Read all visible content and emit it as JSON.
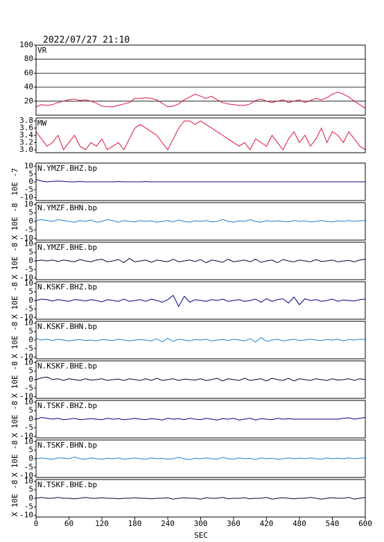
{
  "chart_data": {
    "type": "line",
    "title": "2022/07/27 21:10",
    "xlabel": "SEC",
    "xlim": [
      0,
      600
    ],
    "xticks": [
      0,
      60,
      120,
      180,
      240,
      300,
      360,
      420,
      480,
      540,
      600
    ],
    "x": [
      0,
      10,
      20,
      30,
      40,
      50,
      60,
      70,
      80,
      90,
      100,
      110,
      120,
      130,
      140,
      150,
      160,
      170,
      180,
      190,
      200,
      210,
      220,
      230,
      240,
      250,
      260,
      270,
      280,
      290,
      300,
      310,
      320,
      330,
      340,
      350,
      360,
      370,
      380,
      390,
      400,
      410,
      420,
      430,
      440,
      450,
      460,
      470,
      480,
      490,
      500,
      510,
      520,
      530,
      540,
      550,
      560,
      570,
      580,
      590,
      600
    ],
    "panels": [
      {
        "name": "VR",
        "color": "#dc143c",
        "grid": true,
        "ylim": [
          0,
          100
        ],
        "yticks": [
          20,
          40,
          60,
          80,
          100
        ],
        "values": [
          12,
          15,
          14,
          15,
          18,
          20,
          22,
          23,
          21,
          22,
          20,
          17,
          13,
          12,
          12,
          14,
          16,
          18,
          24,
          24,
          25,
          24,
          22,
          17,
          12,
          13,
          16,
          22,
          26,
          30,
          27,
          24,
          27,
          22,
          18,
          16,
          15,
          14,
          14,
          16,
          21,
          23,
          20,
          18,
          20,
          22,
          18,
          20,
          22,
          18,
          21,
          24,
          22,
          25,
          30,
          33,
          30,
          26,
          20,
          15,
          10
        ]
      },
      {
        "name": "MW",
        "color": "#dc143c",
        "grid": false,
        "ylim": [
          2.92,
          3.88
        ],
        "yticks": [
          {
            "value": 3,
            "label": "3.0"
          },
          3.2,
          3.4,
          3.6,
          3.8
        ],
        "values": [
          3.5,
          3.3,
          3.1,
          3.2,
          3.4,
          3.0,
          3.2,
          3.4,
          3.1,
          3.0,
          3.2,
          3.1,
          3.3,
          3.0,
          3.1,
          3.2,
          3.0,
          3.3,
          3.6,
          3.7,
          3.6,
          3.5,
          3.4,
          3.2,
          3.0,
          3.3,
          3.6,
          3.8,
          3.8,
          3.7,
          3.8,
          3.7,
          3.6,
          3.5,
          3.4,
          3.3,
          3.2,
          3.1,
          3.2,
          3.0,
          3.3,
          3.2,
          3.1,
          3.4,
          3.2,
          3.0,
          3.3,
          3.5,
          3.2,
          3.4,
          3.1,
          3.3,
          3.6,
          3.2,
          3.5,
          3.4,
          3.2,
          3.5,
          3.3,
          3.1,
          3.0
        ]
      },
      {
        "name": "N.YMZF.BHZ.bp",
        "ylabel": "10E -7",
        "color": "#000080",
        "ylim": [
          -12,
          12
        ],
        "yticks": [
          -10,
          -5,
          0,
          5,
          10
        ],
        "values": [
          1.5,
          0.5,
          0,
          0.3,
          0.5,
          0.3,
          0,
          0,
          0.2,
          0,
          0,
          0,
          0,
          0,
          0,
          0.2,
          0,
          0,
          0,
          0,
          0.2,
          0,
          0,
          0,
          0,
          0,
          0,
          0,
          0,
          0,
          0,
          0,
          0,
          0,
          0,
          0,
          0,
          0,
          0,
          0,
          0,
          0,
          0,
          0,
          0,
          0,
          0,
          0,
          0,
          0,
          0,
          0,
          0,
          0,
          0,
          0,
          0,
          0,
          0,
          0,
          0
        ]
      },
      {
        "name": "N.YMZF.BHN.bp",
        "ylabel": "X 10E -8",
        "color": "#1e7fd0",
        "ylim": [
          -11,
          11
        ],
        "yticks": [
          -10,
          -5,
          0,
          5,
          10
        ],
        "values": [
          0.5,
          1,
          0.5,
          0,
          1,
          0.5,
          0,
          -0.5,
          0.5,
          0,
          0.8,
          -0.5,
          0,
          1,
          0.5,
          -0.5,
          0.5,
          0,
          -0.3,
          0.5,
          0,
          0.3,
          -0.5,
          0,
          0.5,
          -0.3,
          0.8,
          0,
          -0.5,
          0.3,
          0,
          0.5,
          -0.3,
          0,
          1.2,
          0,
          -0.5,
          0.3,
          0,
          1,
          0,
          -0.5,
          0.5,
          0,
          0.3,
          0,
          -0.3,
          0.5,
          0,
          0.3,
          -0.3,
          0,
          0.5,
          0,
          -0.3,
          0.3,
          0,
          0.5,
          0,
          0.3,
          0.5
        ]
      },
      {
        "name": "N.YMZF.BHE.bp",
        "ylabel": "X 10E -8",
        "color": "#000033",
        "ylim": [
          -11,
          11
        ],
        "yticks": [
          -10,
          -5,
          0,
          5,
          10
        ],
        "values": [
          0,
          0.5,
          0,
          0.5,
          -0.3,
          0.5,
          0,
          -0.5,
          0.8,
          0,
          -0.5,
          0.5,
          1,
          -0.5,
          0,
          0.8,
          -1,
          1.5,
          -0.5,
          0,
          0.5,
          -0.8,
          0.5,
          0,
          -0.5,
          1,
          -0.5,
          0,
          0.5,
          -0.3,
          0.8,
          -1,
          0.5,
          0,
          -0.8,
          1,
          -0.5,
          0,
          0.5,
          -0.5,
          1,
          -0.8,
          0,
          0.5,
          -1,
          0.8,
          0,
          -0.5,
          0.5,
          0,
          -0.5,
          0.8,
          -0.3,
          0,
          0.5,
          -0.5,
          0,
          0.3,
          -0.5,
          0.5,
          1
        ]
      },
      {
        "name": "N.KSKF.BHZ.bp",
        "ylabel": "X 10E -8",
        "color": "#000080",
        "ylim": [
          -11,
          11
        ],
        "yticks": [
          -10,
          -5,
          0,
          5,
          10
        ],
        "values": [
          0,
          0.8,
          0.5,
          -0.3,
          0.5,
          0,
          -0.5,
          0.5,
          0.3,
          -0.3,
          0.5,
          0,
          -0.8,
          0.5,
          0,
          -0.5,
          0.8,
          -0.5,
          0,
          0.5,
          -0.5,
          0.8,
          0,
          -1,
          0.5,
          3,
          -3.5,
          2.5,
          -1,
          0.5,
          0,
          -0.5,
          0.5,
          0,
          0.8,
          -0.5,
          0,
          0.5,
          -0.5,
          0,
          0.8,
          -1,
          1,
          -0.5,
          0.5,
          1,
          -1.5,
          2,
          -2.5,
          1,
          0,
          0.5,
          -0.5,
          0,
          0.8,
          -0.5,
          0.3,
          0,
          -0.3,
          0.5,
          0.8
        ]
      },
      {
        "name": "N.KSKF.BHN.bp",
        "ylabel": "X 10E -8",
        "color": "#1e7fd0",
        "ylim": [
          -11,
          11
        ],
        "yticks": [
          -10,
          -5,
          0,
          5,
          10
        ],
        "values": [
          1,
          0,
          0.5,
          -0.3,
          0.5,
          0,
          -0.5,
          0,
          0.3,
          -0.3,
          0,
          -0.5,
          0.3,
          0,
          -0.3,
          0.5,
          0,
          -0.5,
          0,
          0.3,
          0,
          -0.5,
          0.8,
          -1,
          1,
          -0.8,
          0.5,
          0,
          -0.5,
          0.3,
          0,
          0.5,
          -0.5,
          0,
          0.3,
          -0.3,
          0.5,
          0,
          -0.5,
          0.8,
          -1.2,
          1.5,
          -0.8,
          0,
          0.5,
          -0.5,
          0,
          0.5,
          -0.3,
          0,
          0.5,
          0,
          -0.3,
          0.3,
          0,
          0.5,
          -0.5,
          0.3,
          0,
          0.5,
          0.3
        ]
      },
      {
        "name": "N.KSKF.BHE.bp",
        "ylabel": "X 10E -8",
        "color": "#000033",
        "ylim": [
          -11,
          11
        ],
        "yticks": [
          -10,
          -5,
          0,
          5,
          10
        ],
        "values": [
          0,
          1,
          1.5,
          0,
          0.5,
          -0.5,
          0.5,
          0,
          -0.5,
          0.5,
          -0.3,
          0,
          0.5,
          -0.5,
          0,
          0.3,
          -0.5,
          0.5,
          0,
          -0.5,
          0.5,
          -0.5,
          0.8,
          -0.5,
          0,
          0.5,
          -0.5,
          0.3,
          0,
          -0.3,
          0.5,
          -0.5,
          0,
          0.8,
          -0.8,
          0.5,
          0,
          -0.5,
          0.8,
          -0.5,
          0,
          0.5,
          -0.8,
          0.8,
          0,
          -0.5,
          0.8,
          -0.8,
          0.5,
          0,
          -0.5,
          0.5,
          0,
          -0.5,
          0.5,
          -0.3,
          0,
          0.5,
          -0.5,
          0.5,
          0
        ]
      },
      {
        "name": "N.TSKF.BHZ.bp",
        "ylabel": "X 10E -8",
        "color": "#000080",
        "ylim": [
          -11,
          11
        ],
        "yticks": [
          -10,
          -5,
          0,
          5,
          10
        ],
        "values": [
          0,
          1,
          0.5,
          0,
          0.5,
          -0.3,
          0,
          0.5,
          -0.3,
          0,
          0.3,
          0,
          -0.3,
          0.5,
          0,
          0.3,
          -0.3,
          0,
          0.5,
          0,
          -0.3,
          0.3,
          0,
          -0.5,
          0.5,
          0,
          0.3,
          -0.3,
          0.5,
          0,
          -0.3,
          0.5,
          0,
          -0.5,
          0.3,
          0,
          0.5,
          -0.5,
          0,
          0.5,
          -0.5,
          0.3,
          0,
          -0.3,
          0.5,
          0,
          0.3,
          0,
          0,
          0,
          0,
          0,
          0,
          0,
          0,
          0,
          0.5,
          0.8,
          0,
          0.5,
          1
        ]
      },
      {
        "name": "N.TSKF.BHN.bp",
        "ylabel": "X 10E -8",
        "color": "#1e7fd0",
        "ylim": [
          -11,
          11
        ],
        "yticks": [
          -10,
          -5,
          0,
          5,
          10
        ],
        "values": [
          0,
          0.5,
          0,
          -0.3,
          0.5,
          0.3,
          0,
          1,
          0,
          -0.3,
          0.5,
          0,
          -0.3,
          0.3,
          0,
          0.5,
          -0.3,
          0,
          0.5,
          0,
          -0.3,
          0.5,
          0,
          0.3,
          -0.3,
          0,
          0.8,
          0,
          -0.5,
          0.3,
          0,
          0.5,
          0,
          -0.3,
          0.8,
          0,
          -0.3,
          0.5,
          0,
          0.3,
          -0.5,
          0.5,
          0,
          0.3,
          -0.3,
          0,
          0.5,
          0,
          0.3,
          0,
          0.5,
          0,
          -0.3,
          0.5,
          0,
          0.3,
          0,
          0.5,
          0,
          0.3,
          0.5
        ]
      },
      {
        "name": "N.TSKF.BHE.bp",
        "ylabel": "X 10E -8",
        "color": "#000033",
        "ylim": [
          -11,
          11
        ],
        "yticks": [
          -10,
          -5,
          0,
          5,
          10
        ],
        "values": [
          0,
          0.5,
          0,
          0,
          0.5,
          0,
          0,
          -0.3,
          0,
          0.5,
          0,
          0,
          0.3,
          0,
          0,
          -0.3,
          0,
          0,
          0.3,
          0,
          0,
          -0.3,
          0,
          0,
          0.3,
          -0.5,
          0,
          0.3,
          0,
          0,
          -0.5,
          0.3,
          0,
          0,
          0.5,
          -0.3,
          0,
          0,
          0.3,
          -0.3,
          0,
          0,
          0.5,
          -0.5,
          0,
          0.3,
          0,
          -0.3,
          0,
          0,
          0.5,
          0,
          -0.5,
          0,
          0.3,
          0,
          0,
          0.5,
          -0.5,
          0,
          0.5
        ]
      }
    ]
  }
}
